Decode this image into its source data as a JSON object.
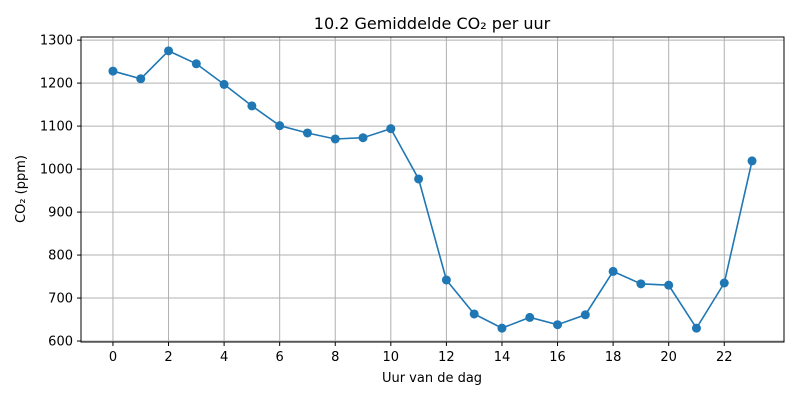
{
  "chart_data": {
    "type": "line",
    "title": "10.2 Gemiddelde CO₂ per uur",
    "xlabel": "Uur van de dag",
    "ylabel": "CO₂ (ppm)",
    "x": [
      0,
      1,
      2,
      3,
      4,
      5,
      6,
      7,
      8,
      9,
      10,
      11,
      12,
      13,
      14,
      15,
      16,
      17,
      18,
      19,
      20,
      21,
      22,
      23
    ],
    "series": [
      {
        "values": [
          1228,
          1210,
          1275,
          1245,
          1197,
          1147,
          1101,
          1084,
          1070,
          1073,
          1094,
          977,
          742,
          663,
          630,
          655,
          638,
          661,
          762,
          733,
          730,
          630,
          735,
          1019
        ],
        "color": "#1f77b4",
        "marker": "circle"
      }
    ],
    "xticks": [
      0,
      2,
      4,
      6,
      8,
      10,
      12,
      14,
      16,
      18,
      20,
      22
    ],
    "xtick_labels": [
      "0",
      "2",
      "4",
      "6",
      "8",
      "10",
      "12",
      "14",
      "16",
      "18",
      "20",
      "22"
    ],
    "yticks": [
      600,
      700,
      800,
      900,
      1000,
      1100,
      1200,
      1300
    ],
    "ytick_labels": [
      "600",
      "700",
      "800",
      "900",
      "1000",
      "1100",
      "1200",
      "1300"
    ],
    "xlim": [
      -1.15,
      24.15
    ],
    "ylim": [
      597.75,
      1307.25
    ],
    "grid": true
  }
}
